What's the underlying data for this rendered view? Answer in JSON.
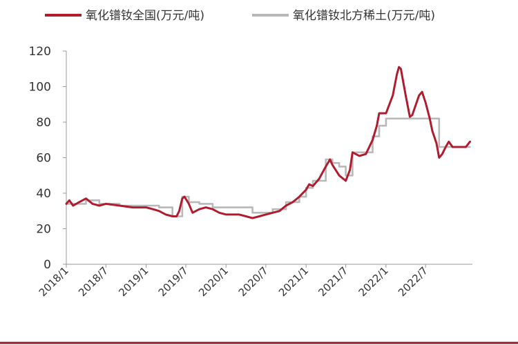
{
  "chart_data": {
    "type": "line",
    "title": "",
    "xlabel": "",
    "ylabel": "",
    "ylim": [
      0,
      120
    ],
    "yticks": [
      0,
      20,
      40,
      60,
      80,
      100,
      120
    ],
    "x_tick_labels": [
      "2018/1",
      "2018/7",
      "2019/1",
      "2019/7",
      "2020/1",
      "2020/7",
      "2021/1",
      "2021/7",
      "2022/1",
      "2022/7"
    ],
    "x_range": [
      "2018-01-01",
      "2023-01-31"
    ],
    "grid": false,
    "legend_position": "top",
    "series": [
      {
        "name": "氧化镨钕全国(万元/吨)",
        "color": "#b01c2e",
        "points": [
          [
            "2018-01-01",
            34
          ],
          [
            "2018-01-15",
            36
          ],
          [
            "2018-02-01",
            33
          ],
          [
            "2018-03-01",
            35
          ],
          [
            "2018-04-01",
            37
          ],
          [
            "2018-05-01",
            34
          ],
          [
            "2018-06-01",
            33
          ],
          [
            "2018-07-01",
            34
          ],
          [
            "2018-09-01",
            33
          ],
          [
            "2018-11-01",
            32
          ],
          [
            "2019-01-01",
            32
          ],
          [
            "2019-02-01",
            31
          ],
          [
            "2019-03-01",
            30
          ],
          [
            "2019-04-01",
            28
          ],
          [
            "2019-05-01",
            27
          ],
          [
            "2019-05-20",
            27
          ],
          [
            "2019-06-01",
            30
          ],
          [
            "2019-06-15",
            37
          ],
          [
            "2019-06-25",
            38
          ],
          [
            "2019-07-15",
            34
          ],
          [
            "2019-08-01",
            29
          ],
          [
            "2019-09-01",
            31
          ],
          [
            "2019-10-01",
            32
          ],
          [
            "2019-11-01",
            31
          ],
          [
            "2019-12-01",
            29
          ],
          [
            "2020-01-01",
            28
          ],
          [
            "2020-02-01",
            28
          ],
          [
            "2020-03-01",
            28
          ],
          [
            "2020-04-01",
            27
          ],
          [
            "2020-05-01",
            26
          ],
          [
            "2020-06-01",
            27
          ],
          [
            "2020-07-01",
            28
          ],
          [
            "2020-08-01",
            29
          ],
          [
            "2020-09-01",
            30
          ],
          [
            "2020-10-01",
            33
          ],
          [
            "2020-11-01",
            35
          ],
          [
            "2020-12-01",
            38
          ],
          [
            "2021-01-01",
            42
          ],
          [
            "2021-01-15",
            45
          ],
          [
            "2021-02-01",
            44
          ],
          [
            "2021-03-01",
            48
          ],
          [
            "2021-04-01",
            55
          ],
          [
            "2021-04-20",
            59
          ],
          [
            "2021-05-01",
            56
          ],
          [
            "2021-06-01",
            50
          ],
          [
            "2021-07-01",
            47
          ],
          [
            "2021-07-20",
            53
          ],
          [
            "2021-08-01",
            63
          ],
          [
            "2021-09-01",
            61
          ],
          [
            "2021-10-01",
            62
          ],
          [
            "2021-11-01",
            70
          ],
          [
            "2021-11-20",
            78
          ],
          [
            "2021-12-01",
            85
          ],
          [
            "2022-01-01",
            85
          ],
          [
            "2022-02-01",
            95
          ],
          [
            "2022-02-20",
            107
          ],
          [
            "2022-03-01",
            111
          ],
          [
            "2022-03-10",
            110
          ],
          [
            "2022-04-01",
            95
          ],
          [
            "2022-04-20",
            83
          ],
          [
            "2022-05-01",
            84
          ],
          [
            "2022-06-01",
            95
          ],
          [
            "2022-06-15",
            97
          ],
          [
            "2022-07-01",
            91
          ],
          [
            "2022-07-20",
            82
          ],
          [
            "2022-08-01",
            75
          ],
          [
            "2022-08-20",
            68
          ],
          [
            "2022-09-01",
            60
          ],
          [
            "2022-09-15",
            62
          ],
          [
            "2022-10-01",
            66
          ],
          [
            "2022-10-15",
            69
          ],
          [
            "2022-11-01",
            66
          ],
          [
            "2022-12-01",
            66
          ],
          [
            "2023-01-01",
            66
          ],
          [
            "2023-01-20",
            69
          ]
        ]
      },
      {
        "name": "氧化镨钕北方稀土(万元/吨)",
        "color": "#b8b8b8",
        "step": true,
        "points": [
          [
            "2018-01-01",
            34
          ],
          [
            "2018-04-01",
            36
          ],
          [
            "2018-06-01",
            34
          ],
          [
            "2018-09-01",
            33
          ],
          [
            "2019-03-01",
            32
          ],
          [
            "2019-05-01",
            27
          ],
          [
            "2019-06-15",
            38
          ],
          [
            "2019-07-15",
            35
          ],
          [
            "2019-09-01",
            34
          ],
          [
            "2019-11-01",
            32
          ],
          [
            "2020-03-01",
            32
          ],
          [
            "2020-05-01",
            29
          ],
          [
            "2020-07-01",
            29
          ],
          [
            "2020-08-01",
            31
          ],
          [
            "2020-10-01",
            35
          ],
          [
            "2020-12-01",
            38
          ],
          [
            "2021-01-01",
            43
          ],
          [
            "2021-02-01",
            47
          ],
          [
            "2021-04-01",
            59
          ],
          [
            "2021-05-01",
            57
          ],
          [
            "2021-06-01",
            55
          ],
          [
            "2021-07-01",
            50
          ],
          [
            "2021-08-01",
            63
          ],
          [
            "2021-10-01",
            63
          ],
          [
            "2021-11-01",
            72
          ],
          [
            "2021-12-01",
            78
          ],
          [
            "2022-01-01",
            82
          ],
          [
            "2022-04-01",
            82
          ],
          [
            "2022-08-01",
            82
          ],
          [
            "2022-09-01",
            66
          ],
          [
            "2023-01-20",
            66
          ]
        ]
      }
    ]
  }
}
